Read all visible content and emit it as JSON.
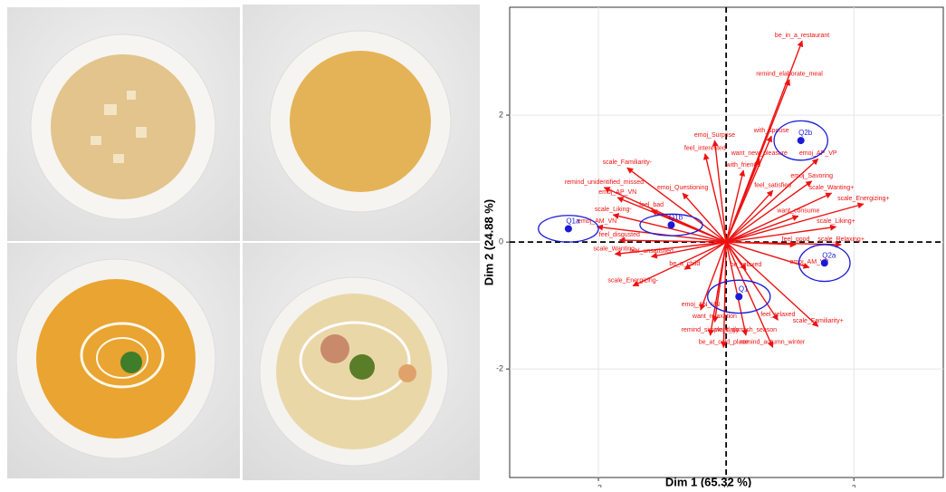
{
  "chart_data": {
    "type": "biplot",
    "x_label": "Dim 1 (65.32 %)",
    "y_label": "Dim 2 (24.88 %)",
    "xlim": [
      -3.39,
      3.4
    ],
    "ylim": [
      -3.71,
      3.7
    ],
    "xticks": [
      -2,
      0,
      2
    ],
    "yticks": [
      -2,
      0,
      2
    ],
    "grid": true,
    "arrow_color": "#ee1111",
    "point_color": "#1a1ad8",
    "arrows": [
      {
        "label": "be_in_a_restaurant",
        "x": 1.19,
        "y": 3.17
      },
      {
        "label": "remind_elaborate_meal",
        "x": 0.99,
        "y": 2.56
      },
      {
        "label": "with_spouse",
        "x": 0.71,
        "y": 1.67
      },
      {
        "label": "emoj_Surprise",
        "x": -0.18,
        "y": 1.6
      },
      {
        "label": "feel_interested",
        "x": -0.33,
        "y": 1.39
      },
      {
        "label": "want_new_pleasure",
        "x": 0.52,
        "y": 1.31
      },
      {
        "label": "emoj_AP_VP",
        "x": 1.44,
        "y": 1.31
      },
      {
        "label": "scale_Familiarity-",
        "x": -1.55,
        "y": 1.17
      },
      {
        "label": "with_friends",
        "x": 0.27,
        "y": 1.13
      },
      {
        "label": "emoj_Savoring",
        "x": 1.34,
        "y": 0.96
      },
      {
        "label": "remind_unidentified_missed",
        "x": -1.91,
        "y": 0.86
      },
      {
        "label": "emoj_Questioning",
        "x": -0.68,
        "y": 0.77
      },
      {
        "label": "feel_satisfied",
        "x": 0.73,
        "y": 0.81
      },
      {
        "label": "scale_Wanting+",
        "x": 1.65,
        "y": 0.77
      },
      {
        "label": "scale_Energizing+",
        "x": 2.15,
        "y": 0.6
      },
      {
        "label": "emoj_AP_VN",
        "x": -1.7,
        "y": 0.7
      },
      {
        "label": "want_consume",
        "x": 1.13,
        "y": 0.41
      },
      {
        "label": "scale_Liking-",
        "x": -1.77,
        "y": 0.43
      },
      {
        "label": "feel_bad",
        "x": -1.17,
        "y": 0.5
      },
      {
        "label": "scale_Liking+",
        "x": 1.72,
        "y": 0.24
      },
      {
        "label": "emoj_AM_VN",
        "x": -2.02,
        "y": 0.24
      },
      {
        "label": "feel_disgusted",
        "x": -1.67,
        "y": 0.03
      },
      {
        "label": "scale_Wanting-",
        "x": -1.74,
        "y": -0.19
      },
      {
        "label": "feel_unsatisfied",
        "x": -1.17,
        "y": -0.23
      },
      {
        "label": "scale_Energizing-",
        "x": -1.46,
        "y": -0.69
      },
      {
        "label": "be_a_child",
        "x": -0.65,
        "y": -0.43
      },
      {
        "label": "feel_good",
        "x": 1.09,
        "y": -0.04
      },
      {
        "label": "scale_Relaxing+",
        "x": 1.8,
        "y": -0.04
      },
      {
        "label": "emoj_AM_VP",
        "x": 1.3,
        "y": -0.4
      },
      {
        "label": "be_relaxed",
        "x": 0.31,
        "y": -0.44
      },
      {
        "label": "feel_relaxed",
        "x": 0.81,
        "y": -1.23
      },
      {
        "label": "scale_Familiarity+",
        "x": 1.44,
        "y": -1.33
      },
      {
        "label": "remind_autumn_winter",
        "x": 0.73,
        "y": -1.66
      },
      {
        "label": "want_garnish_season",
        "x": 0.31,
        "y": -1.47
      },
      {
        "label": "want_relaxation",
        "x": -0.18,
        "y": -1.26
      },
      {
        "label": "remind_simple_daily",
        "x": -0.25,
        "y": -1.47
      },
      {
        "label": "be_at_cold_place",
        "x": -0.04,
        "y": -1.66
      },
      {
        "label": "emoj_AN_VN",
        "x": -0.4,
        "y": -1.07
      }
    ],
    "points": [
      {
        "label": "Q1a",
        "x": -2.47,
        "y": 0.21,
        "rx": 0.47,
        "ry": 0.21
      },
      {
        "label": "Q1b",
        "x": -0.86,
        "y": 0.27,
        "rx": 0.49,
        "ry": 0.17
      },
      {
        "label": "Q2b",
        "x": 1.17,
        "y": 1.6,
        "rx": 0.42,
        "ry": 0.31
      },
      {
        "label": "Q2a",
        "x": 1.54,
        "y": -0.33,
        "rx": 0.4,
        "ry": 0.29
      },
      {
        "label": "Q1",
        "x": 0.2,
        "y": -0.86,
        "rx": 0.49,
        "ry": 0.26
      }
    ]
  }
}
